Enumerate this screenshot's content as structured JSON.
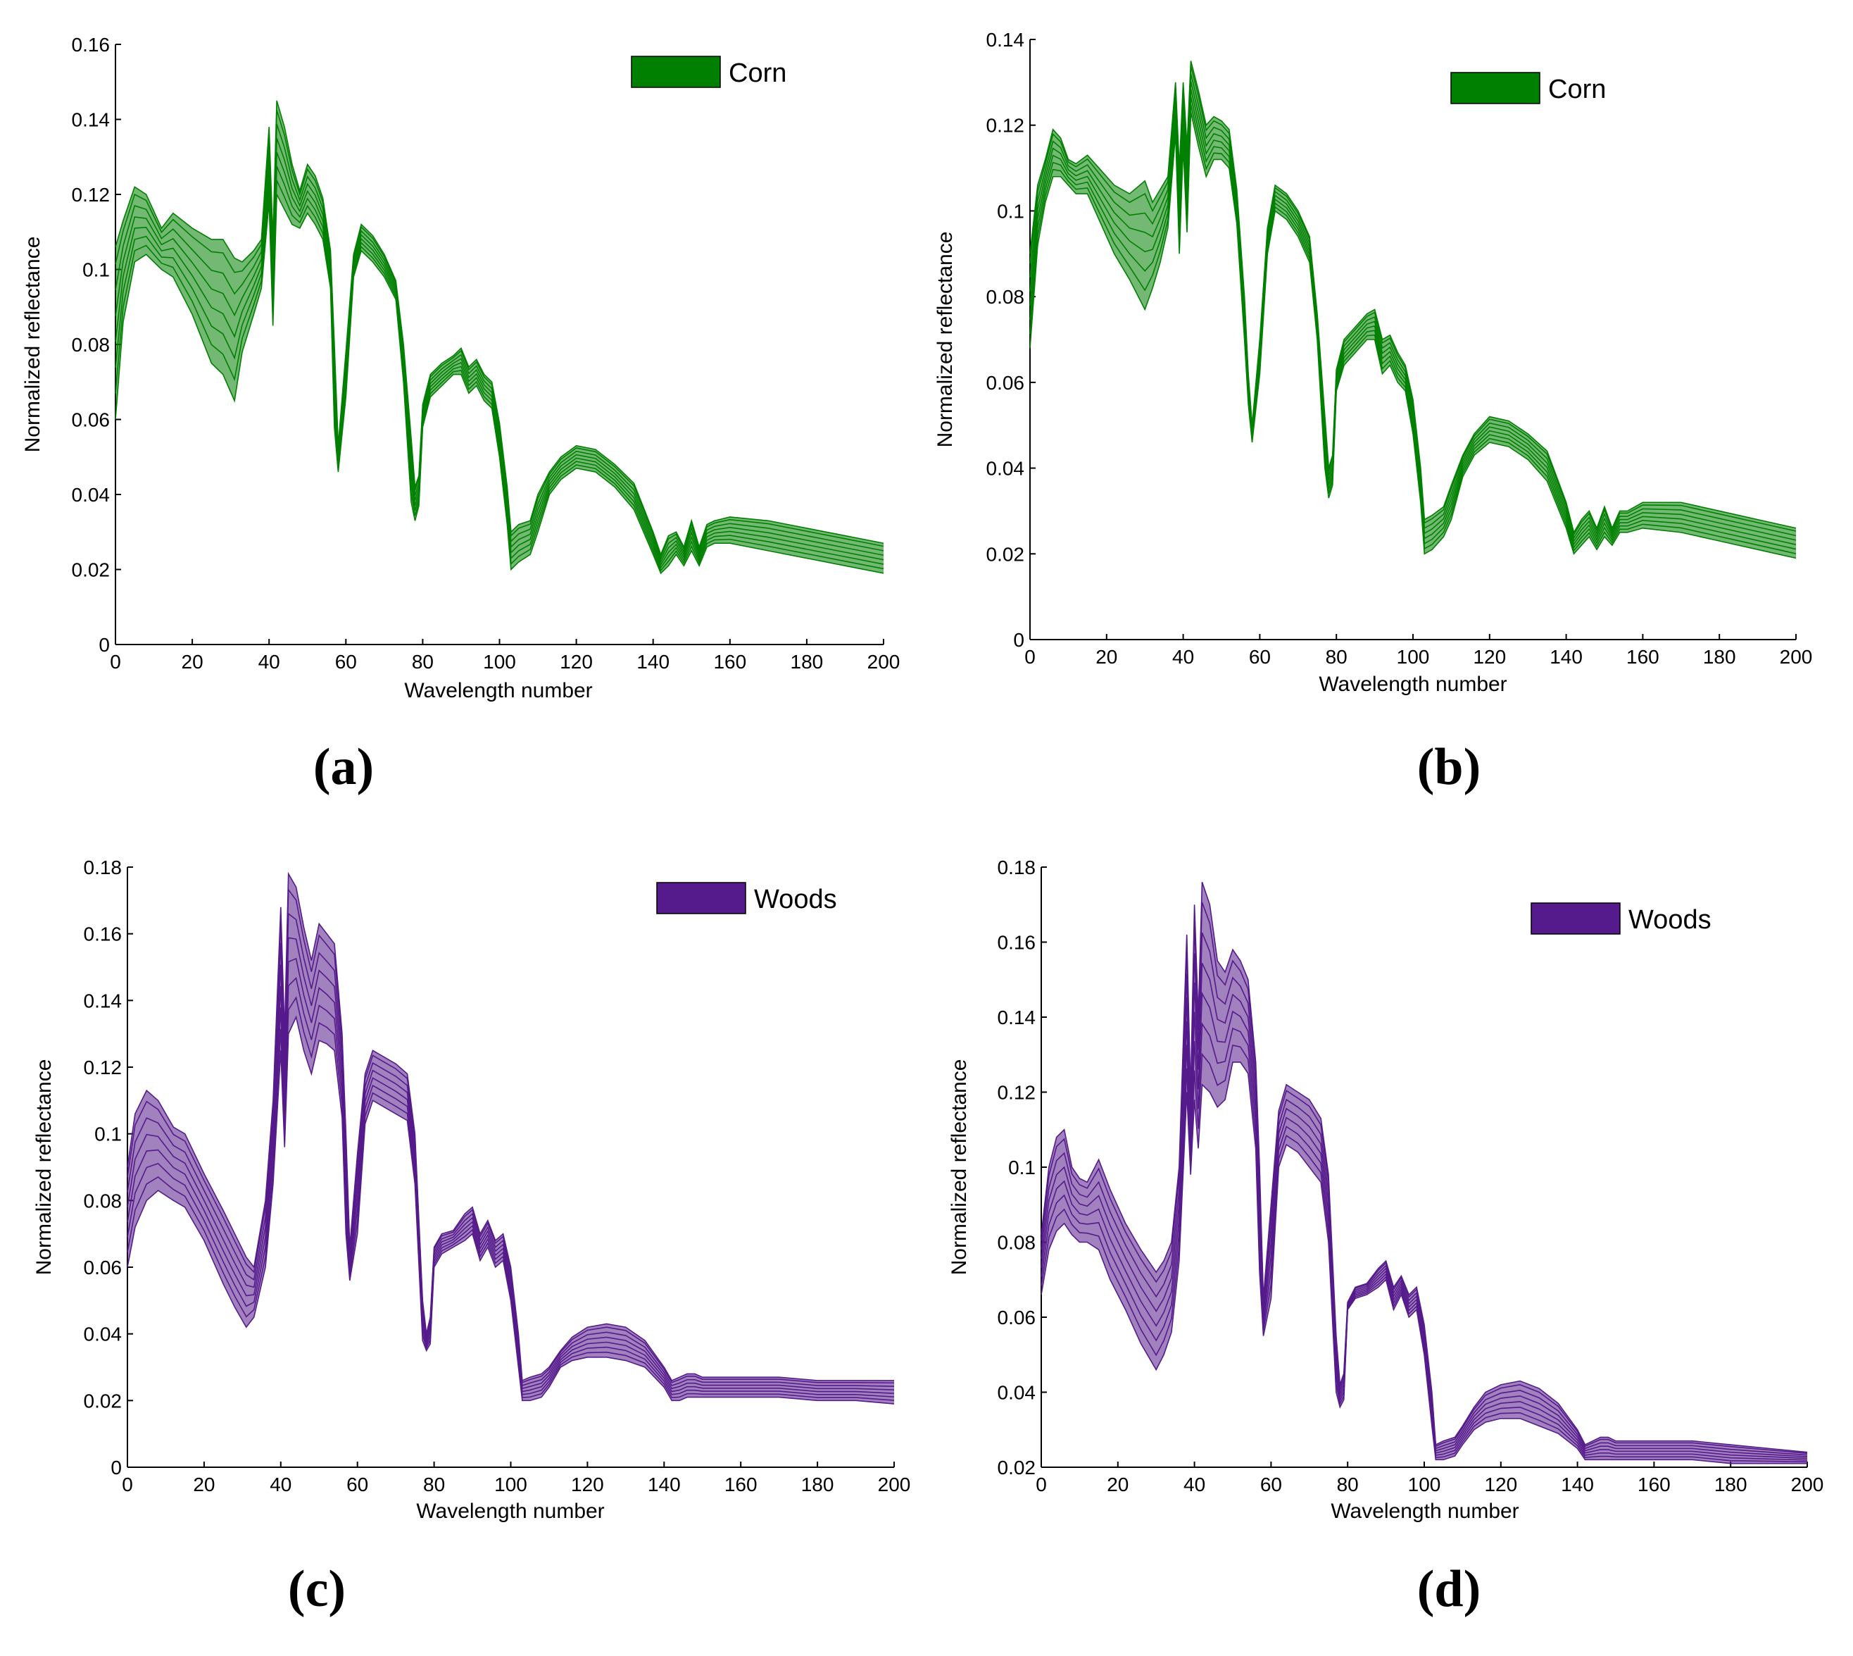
{
  "chart_data": [
    {
      "type": "line",
      "panel": "(a)",
      "legend": "Corn",
      "color": "#008000",
      "xlabel": "Wavelength number",
      "ylabel": "Normalized reflectance",
      "xlim": [
        0,
        200
      ],
      "ylim": [
        0,
        0.16
      ],
      "xticks": [
        "0",
        "20",
        "40",
        "60",
        "80",
        "100",
        "120",
        "140",
        "160",
        "180",
        "200"
      ],
      "yticks": [
        "0",
        "0.02",
        "0.04",
        "0.06",
        "0.08",
        "0.1",
        "0.12",
        "0.14",
        "0.16"
      ],
      "legend_position": "top-right",
      "band": {
        "x": [
          0,
          2,
          5,
          8,
          12,
          15,
          20,
          25,
          28,
          31,
          33,
          36,
          38,
          40,
          41,
          42,
          44,
          46,
          48,
          50,
          52,
          54,
          56,
          57,
          58,
          60,
          62,
          64,
          67,
          70,
          73,
          75,
          77,
          78,
          79,
          80,
          82,
          85,
          88,
          90,
          92,
          94,
          96,
          98,
          100,
          102,
          103,
          105,
          108,
          110,
          113,
          116,
          120,
          125,
          130,
          135,
          140,
          142,
          144,
          146,
          148,
          150,
          152,
          154,
          156,
          160,
          170,
          180,
          190,
          200
        ],
        "upper": [
          0.106,
          0.113,
          0.122,
          0.12,
          0.111,
          0.115,
          0.111,
          0.108,
          0.108,
          0.103,
          0.102,
          0.105,
          0.108,
          0.138,
          0.108,
          0.145,
          0.138,
          0.128,
          0.121,
          0.128,
          0.125,
          0.119,
          0.105,
          0.08,
          0.053,
          0.078,
          0.104,
          0.112,
          0.109,
          0.104,
          0.097,
          0.08,
          0.055,
          0.042,
          0.045,
          0.064,
          0.072,
          0.075,
          0.077,
          0.079,
          0.074,
          0.076,
          0.072,
          0.07,
          0.059,
          0.042,
          0.03,
          0.032,
          0.033,
          0.04,
          0.046,
          0.05,
          0.053,
          0.052,
          0.048,
          0.043,
          0.03,
          0.024,
          0.029,
          0.03,
          0.026,
          0.033,
          0.026,
          0.032,
          0.033,
          0.034,
          0.033,
          0.031,
          0.029,
          0.027
        ],
        "lower": [
          0.06,
          0.086,
          0.102,
          0.104,
          0.1,
          0.098,
          0.088,
          0.075,
          0.072,
          0.065,
          0.078,
          0.088,
          0.095,
          0.118,
          0.085,
          0.12,
          0.116,
          0.112,
          0.111,
          0.115,
          0.112,
          0.108,
          0.095,
          0.058,
          0.046,
          0.066,
          0.098,
          0.105,
          0.102,
          0.098,
          0.092,
          0.07,
          0.038,
          0.033,
          0.037,
          0.058,
          0.066,
          0.069,
          0.072,
          0.072,
          0.067,
          0.069,
          0.065,
          0.063,
          0.05,
          0.032,
          0.02,
          0.022,
          0.024,
          0.03,
          0.04,
          0.044,
          0.047,
          0.046,
          0.042,
          0.036,
          0.024,
          0.019,
          0.021,
          0.024,
          0.021,
          0.025,
          0.021,
          0.026,
          0.027,
          0.027,
          0.025,
          0.023,
          0.021,
          0.019
        ]
      }
    },
    {
      "type": "line",
      "panel": "(b)",
      "legend": "Corn",
      "color": "#008000",
      "xlabel": "Wavelength number",
      "ylabel": "Normalized reflectance",
      "xlim": [
        0,
        200
      ],
      "ylim": [
        0,
        0.14
      ],
      "xticks": [
        "0",
        "20",
        "40",
        "60",
        "80",
        "100",
        "120",
        "140",
        "160",
        "180",
        "200"
      ],
      "yticks": [
        "0",
        "0.02",
        "0.04",
        "0.06",
        "0.08",
        "0.1",
        "0.12",
        "0.14"
      ],
      "legend_position": "top-right",
      "band": {
        "x": [
          0,
          2,
          4,
          6,
          8,
          10,
          12,
          15,
          18,
          22,
          26,
          30,
          32,
          34,
          36,
          38,
          39,
          40,
          41,
          42,
          44,
          46,
          48,
          50,
          52,
          54,
          56,
          57,
          58,
          60,
          62,
          64,
          67,
          70,
          73,
          75,
          77,
          78,
          79,
          80,
          82,
          85,
          88,
          90,
          92,
          94,
          96,
          98,
          100,
          102,
          103,
          105,
          108,
          110,
          113,
          116,
          120,
          125,
          130,
          135,
          140,
          142,
          144,
          146,
          148,
          150,
          152,
          154,
          156,
          160,
          170,
          180,
          190,
          200
        ],
        "upper": [
          0.09,
          0.106,
          0.112,
          0.119,
          0.117,
          0.112,
          0.111,
          0.113,
          0.11,
          0.106,
          0.104,
          0.107,
          0.102,
          0.105,
          0.108,
          0.13,
          0.11,
          0.13,
          0.115,
          0.135,
          0.128,
          0.12,
          0.122,
          0.121,
          0.119,
          0.105,
          0.08,
          0.062,
          0.05,
          0.07,
          0.096,
          0.106,
          0.104,
          0.1,
          0.094,
          0.076,
          0.052,
          0.04,
          0.043,
          0.063,
          0.07,
          0.073,
          0.076,
          0.077,
          0.07,
          0.071,
          0.067,
          0.064,
          0.056,
          0.04,
          0.028,
          0.029,
          0.031,
          0.036,
          0.043,
          0.048,
          0.052,
          0.051,
          0.048,
          0.044,
          0.032,
          0.025,
          0.028,
          0.03,
          0.026,
          0.031,
          0.026,
          0.03,
          0.03,
          0.032,
          0.032,
          0.03,
          0.028,
          0.026
        ],
        "lower": [
          0.068,
          0.092,
          0.102,
          0.108,
          0.108,
          0.106,
          0.104,
          0.104,
          0.098,
          0.09,
          0.084,
          0.077,
          0.082,
          0.088,
          0.096,
          0.118,
          0.09,
          0.115,
          0.095,
          0.123,
          0.115,
          0.108,
          0.112,
          0.112,
          0.11,
          0.097,
          0.07,
          0.055,
          0.046,
          0.062,
          0.09,
          0.1,
          0.098,
          0.094,
          0.088,
          0.07,
          0.04,
          0.033,
          0.036,
          0.058,
          0.064,
          0.067,
          0.07,
          0.07,
          0.062,
          0.064,
          0.06,
          0.058,
          0.048,
          0.032,
          0.02,
          0.021,
          0.024,
          0.028,
          0.038,
          0.043,
          0.046,
          0.045,
          0.042,
          0.037,
          0.026,
          0.02,
          0.022,
          0.024,
          0.021,
          0.024,
          0.022,
          0.025,
          0.025,
          0.026,
          0.025,
          0.023,
          0.021,
          0.019
        ]
      }
    },
    {
      "type": "line",
      "panel": "(c)",
      "legend": "Woods",
      "color": "#551a8b",
      "xlabel": "Wavelength number",
      "ylabel": "Normalized reflectance",
      "xlim": [
        0,
        200
      ],
      "ylim": [
        0,
        0.18
      ],
      "xticks": [
        "0",
        "20",
        "40",
        "60",
        "80",
        "100",
        "120",
        "140",
        "160",
        "180",
        "200"
      ],
      "yticks": [
        "0",
        "0.02",
        "0.04",
        "0.06",
        "0.08",
        "0.1",
        "0.12",
        "0.14",
        "0.16",
        "0.18"
      ],
      "legend_position": "top-right",
      "band": {
        "x": [
          0,
          2,
          5,
          8,
          12,
          15,
          20,
          25,
          28,
          31,
          33,
          36,
          38,
          40,
          41,
          42,
          44,
          46,
          48,
          50,
          52,
          54,
          56,
          57,
          58,
          60,
          62,
          64,
          67,
          70,
          73,
          75,
          77,
          78,
          79,
          80,
          82,
          85,
          88,
          90,
          92,
          94,
          96,
          98,
          100,
          102,
          103,
          105,
          108,
          110,
          113,
          116,
          120,
          125,
          130,
          135,
          140,
          142,
          144,
          146,
          148,
          150,
          152,
          154,
          156,
          160,
          170,
          180,
          190,
          200
        ],
        "upper": [
          0.09,
          0.106,
          0.113,
          0.11,
          0.102,
          0.1,
          0.088,
          0.077,
          0.07,
          0.063,
          0.06,
          0.08,
          0.11,
          0.168,
          0.13,
          0.178,
          0.174,
          0.162,
          0.152,
          0.163,
          0.16,
          0.157,
          0.13,
          0.1,
          0.066,
          0.094,
          0.118,
          0.125,
          0.123,
          0.121,
          0.118,
          0.1,
          0.05,
          0.04,
          0.045,
          0.066,
          0.07,
          0.071,
          0.076,
          0.078,
          0.07,
          0.074,
          0.068,
          0.07,
          0.06,
          0.04,
          0.026,
          0.027,
          0.028,
          0.03,
          0.035,
          0.039,
          0.042,
          0.043,
          0.042,
          0.038,
          0.03,
          0.026,
          0.027,
          0.028,
          0.028,
          0.027,
          0.027,
          0.027,
          0.027,
          0.027,
          0.027,
          0.026,
          0.026,
          0.026
        ],
        "lower": [
          0.06,
          0.072,
          0.08,
          0.083,
          0.08,
          0.078,
          0.068,
          0.055,
          0.048,
          0.042,
          0.045,
          0.06,
          0.085,
          0.125,
          0.096,
          0.13,
          0.135,
          0.125,
          0.118,
          0.128,
          0.127,
          0.125,
          0.105,
          0.07,
          0.056,
          0.07,
          0.103,
          0.11,
          0.108,
          0.106,
          0.104,
          0.085,
          0.038,
          0.035,
          0.037,
          0.06,
          0.064,
          0.066,
          0.068,
          0.07,
          0.062,
          0.066,
          0.06,
          0.062,
          0.05,
          0.03,
          0.02,
          0.02,
          0.021,
          0.024,
          0.03,
          0.032,
          0.033,
          0.033,
          0.032,
          0.03,
          0.024,
          0.02,
          0.02,
          0.021,
          0.021,
          0.021,
          0.021,
          0.021,
          0.021,
          0.021,
          0.021,
          0.02,
          0.02,
          0.019
        ]
      }
    },
    {
      "type": "line",
      "panel": "(d)",
      "legend": "Woods",
      "color": "#551a8b",
      "xlabel": "Wavelength number",
      "ylabel": "Normalized reflectance",
      "xlim": [
        0,
        200
      ],
      "ylim": [
        0.02,
        0.18
      ],
      "xticks": [
        "0",
        "20",
        "40",
        "60",
        "80",
        "100",
        "120",
        "140",
        "160",
        "180",
        "200"
      ],
      "yticks": [
        "0.02",
        "0.04",
        "0.06",
        "0.08",
        "0.1",
        "0.12",
        "0.14",
        "0.16",
        "0.18"
      ],
      "legend_position": "top-right",
      "band": {
        "x": [
          0,
          2,
          4,
          6,
          8,
          10,
          12,
          15,
          18,
          22,
          26,
          30,
          32,
          34,
          36,
          38,
          39,
          40,
          41,
          42,
          44,
          46,
          48,
          50,
          52,
          54,
          56,
          57,
          58,
          60,
          62,
          64,
          67,
          70,
          73,
          75,
          77,
          78,
          79,
          80,
          82,
          85,
          88,
          90,
          92,
          94,
          96,
          98,
          100,
          102,
          103,
          105,
          108,
          110,
          113,
          116,
          120,
          125,
          130,
          135,
          140,
          142,
          144,
          146,
          148,
          150,
          152,
          154,
          156,
          160,
          170,
          180,
          190,
          200
        ],
        "upper": [
          0.082,
          0.1,
          0.108,
          0.11,
          0.1,
          0.097,
          0.096,
          0.102,
          0.094,
          0.085,
          0.078,
          0.072,
          0.075,
          0.08,
          0.1,
          0.162,
          0.12,
          0.17,
          0.14,
          0.176,
          0.17,
          0.155,
          0.152,
          0.158,
          0.155,
          0.15,
          0.128,
          0.1,
          0.065,
          0.09,
          0.115,
          0.122,
          0.12,
          0.118,
          0.113,
          0.098,
          0.055,
          0.042,
          0.045,
          0.064,
          0.068,
          0.069,
          0.073,
          0.075,
          0.068,
          0.071,
          0.066,
          0.068,
          0.058,
          0.04,
          0.026,
          0.027,
          0.028,
          0.031,
          0.036,
          0.04,
          0.042,
          0.043,
          0.041,
          0.037,
          0.03,
          0.026,
          0.027,
          0.028,
          0.028,
          0.027,
          0.027,
          0.027,
          0.027,
          0.027,
          0.027,
          0.026,
          0.025,
          0.024
        ],
        "lower": [
          0.066,
          0.078,
          0.083,
          0.085,
          0.082,
          0.08,
          0.08,
          0.078,
          0.07,
          0.062,
          0.053,
          0.046,
          0.05,
          0.056,
          0.075,
          0.12,
          0.098,
          0.118,
          0.105,
          0.122,
          0.12,
          0.116,
          0.118,
          0.128,
          0.128,
          0.125,
          0.105,
          0.072,
          0.055,
          0.065,
          0.1,
          0.106,
          0.104,
          0.1,
          0.096,
          0.08,
          0.04,
          0.036,
          0.038,
          0.062,
          0.065,
          0.066,
          0.068,
          0.07,
          0.062,
          0.066,
          0.06,
          0.062,
          0.05,
          0.031,
          0.022,
          0.022,
          0.023,
          0.026,
          0.03,
          0.032,
          0.033,
          0.033,
          0.031,
          0.029,
          0.025,
          0.022,
          0.022,
          0.022,
          0.022,
          0.022,
          0.022,
          0.022,
          0.022,
          0.022,
          0.022,
          0.021,
          0.021,
          0.021
        ]
      }
    }
  ]
}
